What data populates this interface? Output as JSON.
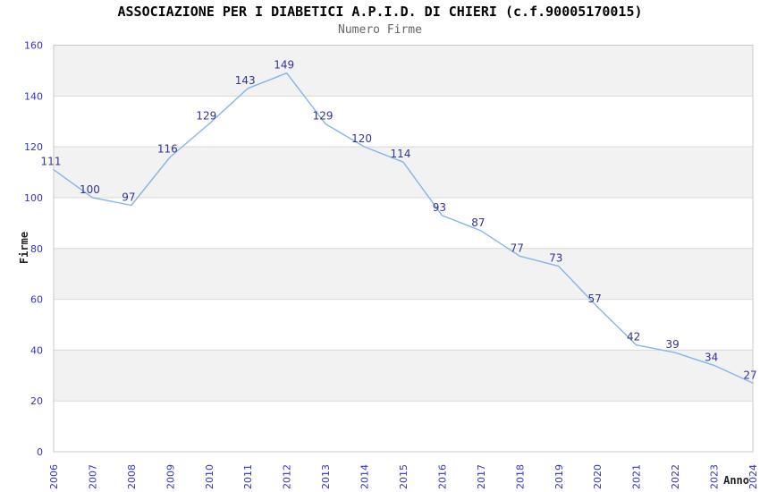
{
  "chart_data": {
    "type": "line",
    "title": "ASSOCIAZIONE PER I DIABETICI A.P.I.D. DI CHIERI (c.f.90005170015)",
    "subtitle": "Numero Firme",
    "xlabel": "Anno",
    "ylabel": "Firme",
    "categories": [
      "2006",
      "2007",
      "2008",
      "2009",
      "2010",
      "2011",
      "2012",
      "2013",
      "2014",
      "2015",
      "2016",
      "2017",
      "2018",
      "2019",
      "2020",
      "2021",
      "2022",
      "2023",
      "2024"
    ],
    "values": [
      111,
      100,
      97,
      116,
      129,
      143,
      149,
      129,
      120,
      114,
      93,
      87,
      77,
      73,
      57,
      42,
      39,
      34,
      27
    ],
    "ylim": [
      0,
      160
    ],
    "ytick_step": 20,
    "ytick_labels": [
      "0",
      "20",
      "40",
      "60",
      "80",
      "100",
      "120",
      "140",
      "160"
    ],
    "grid": "horizontal-bands",
    "legend": "none",
    "colors": {
      "line": "#85b5e7",
      "data_label": "#333399",
      "tick_label": "#3333cc",
      "band_fill": "#f2f2f2",
      "band_alt_fill": "#ffffff",
      "grid_line": "#d9d9d9",
      "plot_border": "#c9c9c9",
      "title": "#000000",
      "subtitle": "#666666",
      "axis_title": "#222222"
    }
  }
}
